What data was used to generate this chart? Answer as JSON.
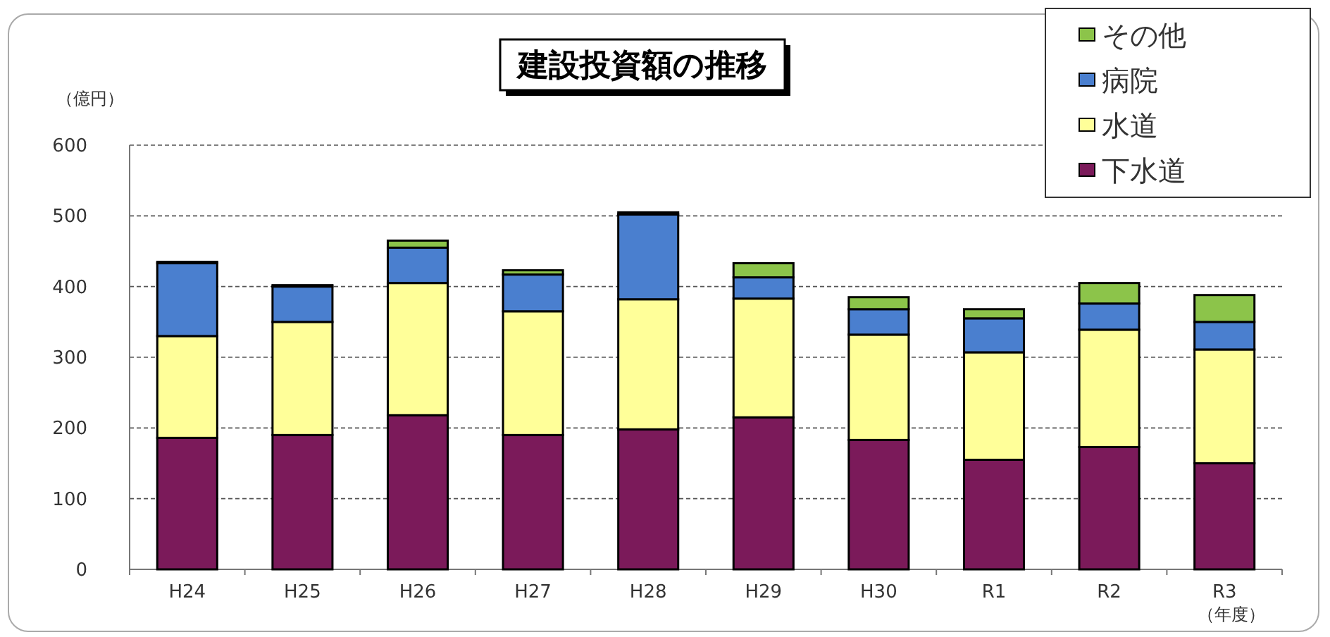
{
  "chart_data": {
    "type": "bar",
    "title": "建設投資額の推移",
    "ylabel": "（億円）",
    "xlabel": "（年度）",
    "categories": [
      "H24",
      "H25",
      "H26",
      "H27",
      "H28",
      "H29",
      "H30",
      "R1",
      "R2",
      "R3"
    ],
    "stacked": true,
    "series": [
      {
        "name": "下水道",
        "color": "#7b1a5a",
        "values": [
          186,
          190,
          218,
          190,
          198,
          215,
          183,
          155,
          173,
          150
        ]
      },
      {
        "name": "水道",
        "color": "#ffff99",
        "values": [
          144,
          160,
          187,
          175,
          184,
          168,
          149,
          152,
          166,
          161
        ]
      },
      {
        "name": "病院",
        "color": "#4a7fcf",
        "values": [
          103,
          50,
          50,
          52,
          120,
          30,
          36,
          48,
          37,
          39
        ]
      },
      {
        "name": "その他",
        "color": "#8cc44a",
        "values": [
          2,
          2,
          10,
          6,
          3,
          20,
          17,
          13,
          29,
          38
        ]
      }
    ],
    "ylim": [
      0,
      600
    ],
    "yticks": [
      0,
      100,
      200,
      300,
      400,
      500,
      600
    ],
    "grid": "y",
    "legend": "top right"
  }
}
